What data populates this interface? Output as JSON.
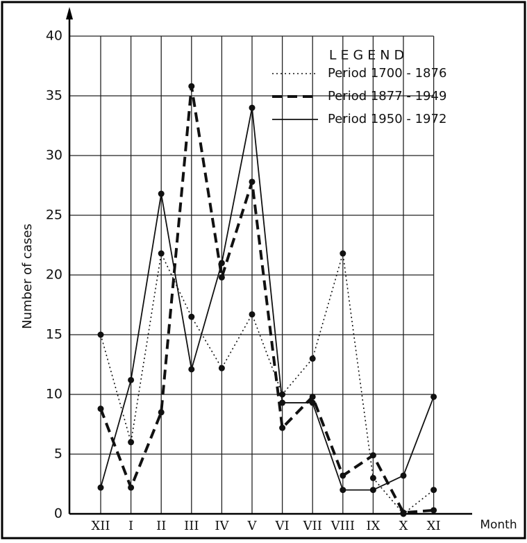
{
  "chart_data": {
    "type": "line",
    "y_label": "Number of cases",
    "x_label": "Month",
    "legend_title": "L E G E N D",
    "categories": [
      "XII",
      "I",
      "II",
      "III",
      "IV",
      "V",
      "VI",
      "VII",
      "VIII",
      "IX",
      "X",
      "XI"
    ],
    "series": [
      {
        "name": "Period 1700 - 1876",
        "color": "#111111",
        "style": "dotted",
        "values": [
          15,
          6,
          21.8,
          16.5,
          12.2,
          16.7,
          10,
          13,
          21.8,
          3,
          0,
          2
        ]
      },
      {
        "name": "Period 1877 - 1949",
        "color": "#111111",
        "style": "dashed",
        "values": [
          8.8,
          2.2,
          8.5,
          35.8,
          19.8,
          27.8,
          7.2,
          9.8,
          3.2,
          4.9,
          0.1,
          0.3
        ]
      },
      {
        "name": "Period 1950 - 1972",
        "color": "#111111",
        "style": "solid",
        "values": [
          2.2,
          11.2,
          26.8,
          12.1,
          21,
          34,
          9.3,
          9.3,
          2,
          2,
          3.2,
          9.8
        ]
      }
    ],
    "ylim": [
      0,
      40
    ],
    "yticks": [
      0,
      5,
      10,
      15,
      20,
      25,
      30,
      35,
      40
    ],
    "grid": true
  }
}
